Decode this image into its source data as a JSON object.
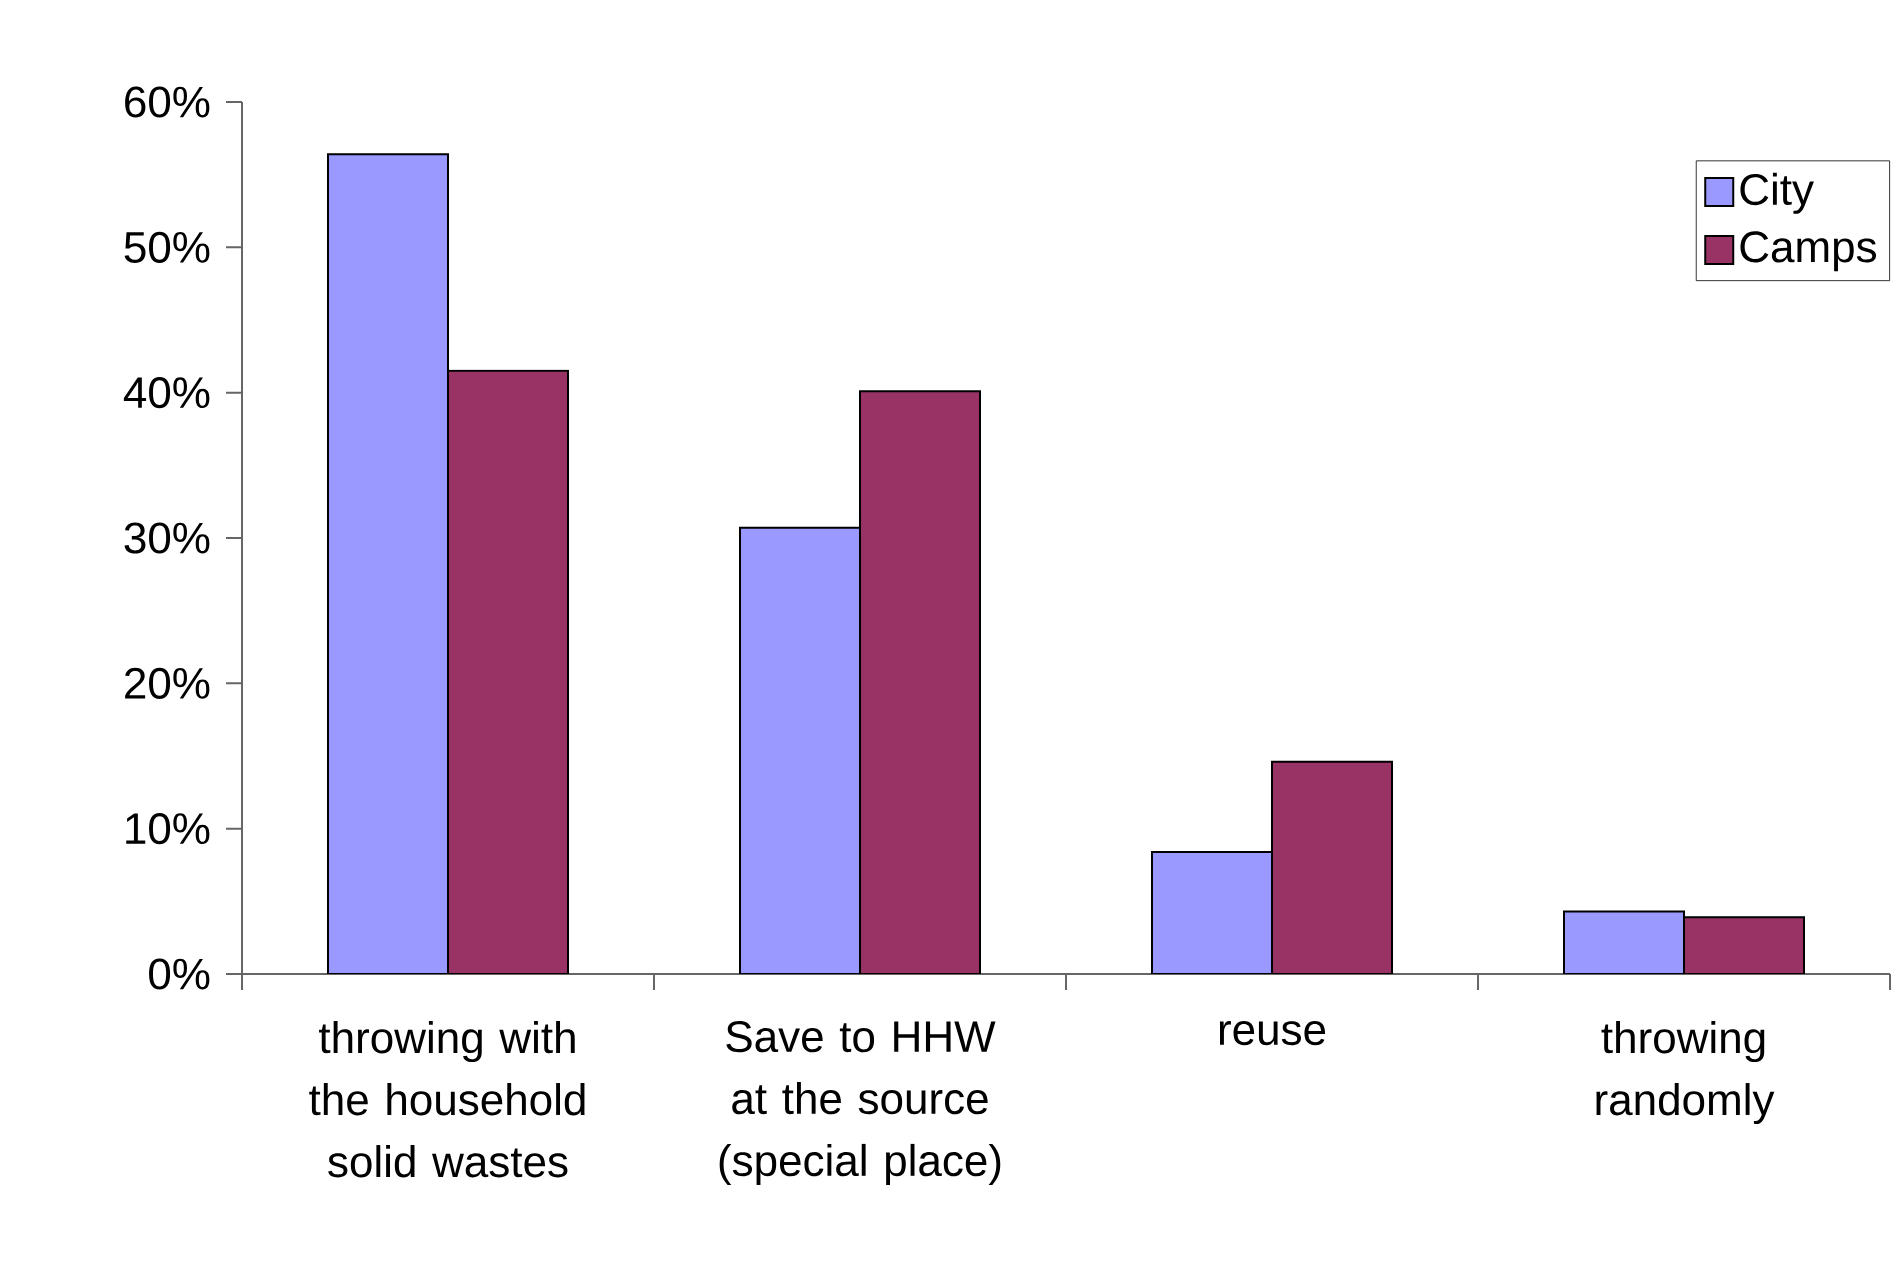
{
  "chart_data": {
    "type": "bar",
    "categories": [
      "throwing with the household solid wastes",
      "Save to HHW at the source (special place)",
      "reuse",
      "throwing randomly"
    ],
    "series": [
      {
        "name": "City",
        "color": "#9999ff",
        "values": [
          56.4,
          30.7,
          8.4,
          4.3
        ]
      },
      {
        "name": "Camps",
        "color": "#993366",
        "values": [
          41.5,
          40.1,
          14.6,
          3.9
        ]
      }
    ],
    "ylim": [
      0,
      60
    ],
    "yticks": [
      {
        "value": 0,
        "label": "0%"
      },
      {
        "value": 10,
        "label": "10%"
      },
      {
        "value": 20,
        "label": "20%"
      },
      {
        "value": 30,
        "label": "30%"
      },
      {
        "value": 40,
        "label": "40%"
      },
      {
        "value": 50,
        "label": "50%"
      },
      {
        "value": 60,
        "label": "60%"
      }
    ],
    "legend": "top right"
  }
}
